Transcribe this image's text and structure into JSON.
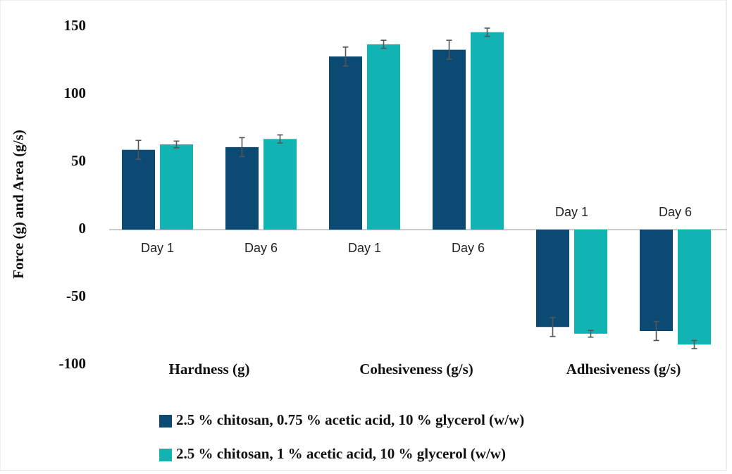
{
  "chart_data": {
    "type": "bar",
    "y_label": "Force (g) and Area (g/s)",
    "categories": [
      "Day 1",
      "Day 6",
      "Day 1",
      "Day 6",
      "Day 1",
      "Day 6"
    ],
    "groups": [
      "Hardness (g)",
      "Cohesiveness (g/s)",
      "Adhesiveness (g/s)"
    ],
    "series": [
      {
        "name": "2.5 % chitosan, 0.75 % acetic acid, 10 % glycerol (w/w)",
        "color": "#0b4a73",
        "values": [
          59,
          61,
          128,
          133,
          -72,
          -75
        ],
        "errors": [
          7,
          7,
          7,
          7,
          7,
          7
        ]
      },
      {
        "name": "2.5 % chitosan, 1 % acetic acid, 10 % glycerol (w/w)",
        "color": "#12b3b3",
        "values": [
          63,
          67,
          137,
          146,
          -77,
          -85
        ],
        "errors": [
          2.5,
          3,
          3,
          3,
          2.5,
          3
        ]
      }
    ],
    "ylim": [
      -100,
      150
    ],
    "yticks": [
      -100,
      -50,
      0,
      50,
      100,
      150
    ],
    "grid": false
  }
}
